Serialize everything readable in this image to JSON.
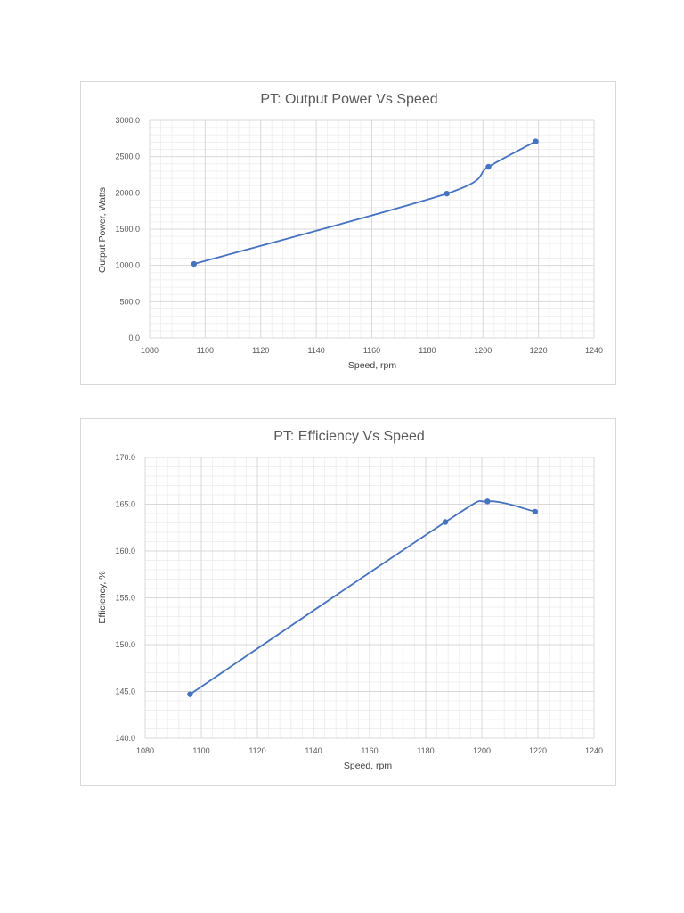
{
  "chart_data": [
    {
      "type": "scatter",
      "title": "PT: Output Power Vs Speed",
      "xlabel": "Speed, rpm",
      "ylabel": "Output Power, Watts",
      "xlim": [
        1080,
        1240
      ],
      "ylim": [
        0,
        3000
      ],
      "x_ticks": [
        1080,
        1100,
        1120,
        1140,
        1160,
        1180,
        1200,
        1220,
        1240
      ],
      "y_ticks": [
        "0.0",
        "500.0",
        "1000.0",
        "1500.0",
        "2000.0",
        "2500.0",
        "3000.0"
      ],
      "grid": true,
      "smooth": true,
      "series": [
        {
          "x": [
            1096,
            1187,
            1202,
            1219
          ],
          "y": [
            1020,
            1990,
            2360,
            2710
          ],
          "color": "#4472c4"
        }
      ]
    },
    {
      "type": "scatter",
      "title": "PT: Efficiency Vs Speed",
      "xlabel": "Speed, rpm",
      "ylabel": "Efficiency, %",
      "xlim": [
        1080,
        1240
      ],
      "ylim": [
        140,
        170
      ],
      "x_ticks": [
        1080,
        1100,
        1120,
        1140,
        1160,
        1180,
        1200,
        1220,
        1240
      ],
      "y_ticks": [
        "140.0",
        "145.0",
        "150.0",
        "155.0",
        "160.0",
        "165.0",
        "170.0"
      ],
      "grid": true,
      "smooth": true,
      "series": [
        {
          "x": [
            1096,
            1187,
            1202,
            1219
          ],
          "y": [
            144.7,
            163.1,
            165.3,
            164.2
          ],
          "color": "#4472c4"
        }
      ]
    }
  ]
}
